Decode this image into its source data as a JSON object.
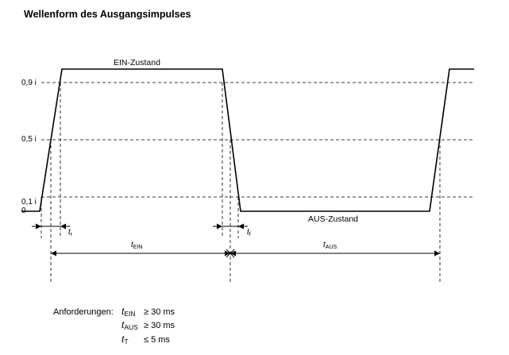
{
  "title": "Wellenform des Ausgangsimpulses",
  "levels": {
    "high": "0,9 i",
    "mid": "0,5 i",
    "low": "0,1 i",
    "zero": "0"
  },
  "states": {
    "on": "EIN-Zustand",
    "off": "AUS-Zustand"
  },
  "timings": {
    "rise_symbol": "t",
    "rise_sub": "r",
    "fall_symbol": "t",
    "fall_sub": "f",
    "on_symbol": "t",
    "on_sub": "EIN",
    "off_symbol": "t",
    "off_sub": "AUS"
  },
  "requirements": {
    "label": "Anforderungen:",
    "items": [
      {
        "symbol": "t",
        "sub": "EIN",
        "relation": "≥ 30 ms"
      },
      {
        "symbol": "t",
        "sub": "AUS",
        "relation": "≥ 30 ms"
      },
      {
        "symbol": "t",
        "sub": "T",
        "relation": "≤ 5 ms"
      }
    ]
  }
}
